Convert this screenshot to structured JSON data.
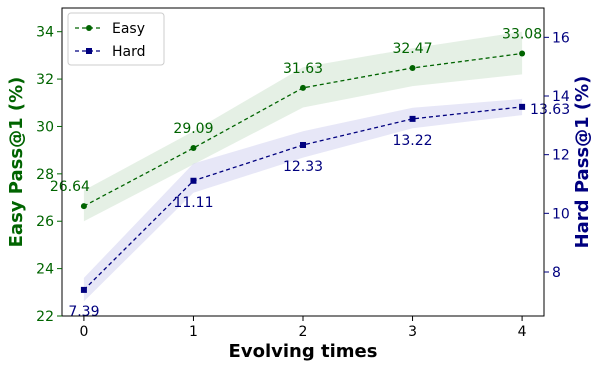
{
  "chart_data": {
    "type": "line",
    "title": "",
    "xlabel": "Evolving times",
    "x": [
      0,
      1,
      2,
      3,
      4
    ],
    "xlim": [
      -0.2,
      4.2
    ],
    "grid": false,
    "legend_position": "top-left",
    "left_axis": {
      "label": "Easy Pass@1 (%)",
      "color": "#006400",
      "ylim": [
        22,
        35
      ],
      "ticks": [
        22,
        24,
        26,
        28,
        30,
        32,
        34
      ]
    },
    "right_axis": {
      "label": "Hard Pass@1 (%)",
      "color": "#00007f",
      "ylim": [
        6.5,
        17
      ],
      "ticks": [
        8,
        10,
        12,
        14,
        16
      ]
    },
    "series": [
      {
        "name": "Easy",
        "axis": "left",
        "color": "#006400",
        "band_color": "#cfe3cf",
        "marker": "circle",
        "line_style": "dashed",
        "values": [
          26.64,
          29.09,
          31.63,
          32.47,
          33.08
        ],
        "band_lower": [
          26.0,
          28.4,
          30.8,
          31.7,
          32.2
        ],
        "band_upper": [
          27.3,
          29.8,
          32.5,
          33.3,
          34.0
        ],
        "labels": [
          "26.64",
          "29.09",
          "31.63",
          "32.47",
          "33.08"
        ]
      },
      {
        "name": "Hard",
        "axis": "right",
        "color": "#00007f",
        "band_color": "#d4d4f0",
        "marker": "square",
        "line_style": "dashed",
        "values": [
          7.39,
          11.11,
          12.33,
          13.22,
          13.63
        ],
        "band_lower": [
          7.0,
          10.7,
          11.9,
          12.9,
          13.35
        ],
        "band_upper": [
          7.8,
          11.7,
          12.8,
          13.6,
          13.9
        ],
        "labels": [
          "7.39",
          "11.11",
          "12.33",
          "13.22",
          "13.63"
        ]
      }
    ]
  }
}
